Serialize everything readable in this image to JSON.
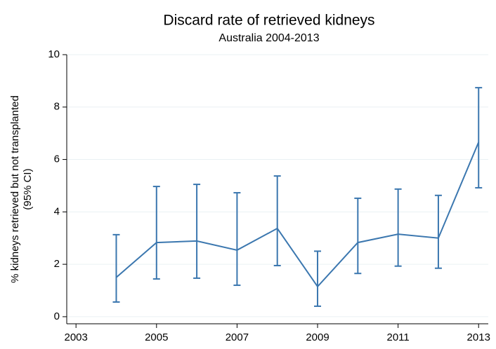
{
  "chart_data": {
    "type": "line",
    "title": "Discard rate of retrieved kidneys",
    "subtitle": "Australia 2004-2013",
    "y_label": [
      "% kidneys retrieved but not transplanted",
      "(95% CI)"
    ],
    "x": [
      2004,
      2005,
      2006,
      2007,
      2008,
      2009,
      2010,
      2011,
      2012,
      2013
    ],
    "series": [
      {
        "color": "#3b77af",
        "values": [
          1.5,
          2.83,
          2.89,
          2.54,
          3.37,
          1.15,
          2.83,
          3.15,
          3.0,
          6.66
        ],
        "lower": [
          0.56,
          1.44,
          1.47,
          1.2,
          1.95,
          0.4,
          1.65,
          1.93,
          1.85,
          4.92
        ],
        "upper": [
          3.13,
          4.97,
          5.05,
          4.73,
          5.37,
          2.5,
          4.52,
          4.87,
          4.63,
          8.74
        ]
      }
    ],
    "xlim": [
      2002.77,
      2013.24
    ],
    "ylim": [
      -0.27,
      10
    ],
    "xticks": [
      2003,
      2005,
      2007,
      2009,
      2011,
      2013
    ],
    "yticks": [
      0,
      2,
      4,
      6,
      8,
      10
    ],
    "grid": true
  }
}
